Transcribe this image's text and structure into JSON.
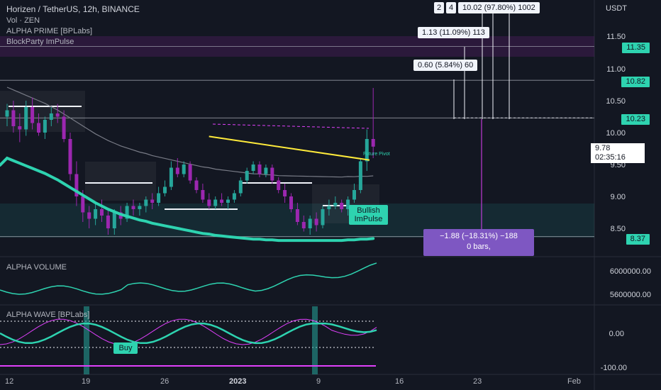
{
  "header": {
    "title": "Horizen / TetherUS, 12h, BINANCE",
    "indicators": [
      "Vol · ZEN",
      "ALPHA PRIME [BPLabs]",
      "BlockParty ImPulse"
    ]
  },
  "price_axis": {
    "currency": "USDT",
    "ticks": [
      "11.50",
      "11.00",
      "10.50",
      "10.00",
      "9.50",
      "9.00",
      "8.50"
    ],
    "tag_values": [
      "11.35",
      "10.82",
      "10.23",
      "8.37"
    ],
    "last_price": "9.78",
    "countdown": "02:35:16"
  },
  "time_axis": [
    "12",
    "19",
    "26",
    "2023",
    "9",
    "16",
    "23",
    "Feb"
  ],
  "measure_boxes": [
    "2",
    "4",
    "10.02 (97.80%) 1002",
    "1.13 (11.09%) 113",
    "0.60 (5.84%) 60",
    "−1.88 (−18.31%) −188",
    "0 bars,"
  ],
  "annotations": {
    "bullish": "Bullish ImPulse",
    "buy": "Buy",
    "future": "Future Pivot"
  },
  "panes": {
    "volume": {
      "title": "ALPHA VOLUME",
      "ticks": [
        "6000000.00",
        "5600000.00"
      ]
    },
    "wave": {
      "title": "ALPHA WAVE [BPLabs]",
      "ticks": [
        "0.00",
        "-100.00"
      ]
    }
  },
  "colors": {
    "bg": "#131722",
    "up": "#26a69a",
    "down": "#9c27b0",
    "sma": "#2ed3b0",
    "trend": "#ffeb3b",
    "wave": "#e040fb",
    "tag": "#8c87cc"
  },
  "chart_data": {
    "type": "candlestick",
    "x_label": "12h bars",
    "ylim": [
      8.2,
      11.7
    ],
    "candles": [
      [
        10.25,
        10.45,
        10.1,
        10.35
      ],
      [
        10.35,
        10.5,
        10.0,
        10.1
      ],
      [
        10.1,
        10.3,
        9.85,
        10.05
      ],
      [
        10.05,
        10.5,
        9.95,
        10.4
      ],
      [
        10.4,
        10.55,
        10.05,
        10.15
      ],
      [
        10.15,
        10.3,
        9.95,
        10.0
      ],
      [
        10.0,
        10.25,
        9.9,
        10.2
      ],
      [
        10.2,
        10.4,
        10.1,
        10.3
      ],
      [
        10.3,
        10.45,
        10.15,
        10.25
      ],
      [
        10.25,
        10.35,
        9.85,
        9.9
      ],
      [
        9.9,
        10.0,
        9.25,
        9.35
      ],
      [
        9.35,
        9.55,
        8.85,
        9.0
      ],
      [
        9.0,
        9.1,
        8.6,
        8.75
      ],
      [
        8.75,
        8.85,
        8.5,
        8.65
      ],
      [
        8.65,
        8.9,
        8.55,
        8.8
      ],
      [
        8.8,
        8.95,
        8.6,
        8.7
      ],
      [
        8.7,
        8.8,
        8.4,
        8.5
      ],
      [
        8.5,
        8.8,
        8.4,
        8.75
      ],
      [
        8.75,
        8.85,
        8.55,
        8.65
      ],
      [
        8.65,
        8.9,
        8.6,
        8.85
      ],
      [
        8.85,
        8.95,
        8.7,
        8.8
      ],
      [
        8.8,
        8.9,
        8.7,
        8.85
      ],
      [
        8.85,
        9.0,
        8.75,
        8.95
      ],
      [
        8.95,
        9.05,
        8.8,
        8.9
      ],
      [
        8.9,
        9.15,
        8.85,
        9.05
      ],
      [
        9.05,
        9.25,
        9.0,
        9.15
      ],
      [
        9.15,
        9.55,
        9.1,
        9.45
      ],
      [
        9.45,
        9.6,
        9.3,
        9.35
      ],
      [
        9.35,
        9.55,
        9.3,
        9.5
      ],
      [
        9.5,
        9.55,
        9.2,
        9.25
      ],
      [
        9.25,
        9.3,
        9.05,
        9.1
      ],
      [
        9.1,
        9.2,
        8.9,
        8.95
      ],
      [
        8.95,
        9.05,
        8.8,
        8.85
      ],
      [
        8.85,
        9.0,
        8.8,
        8.95
      ],
      [
        8.95,
        9.05,
        8.85,
        8.9
      ],
      [
        8.9,
        9.0,
        8.8,
        8.95
      ],
      [
        8.95,
        9.1,
        8.9,
        9.05
      ],
      [
        9.05,
        9.3,
        9.0,
        9.25
      ],
      [
        9.25,
        9.45,
        9.2,
        9.4
      ],
      [
        9.4,
        9.55,
        9.35,
        9.5
      ],
      [
        9.5,
        9.55,
        9.3,
        9.35
      ],
      [
        9.35,
        9.5,
        9.3,
        9.45
      ],
      [
        9.45,
        9.5,
        9.2,
        9.25
      ],
      [
        9.25,
        9.3,
        9.05,
        9.1
      ],
      [
        9.1,
        9.2,
        8.9,
        9.0
      ],
      [
        9.0,
        9.05,
        8.75,
        8.8
      ],
      [
        8.8,
        8.9,
        8.55,
        8.6
      ],
      [
        8.6,
        8.7,
        8.45,
        8.5
      ],
      [
        8.5,
        8.7,
        8.4,
        8.65
      ],
      [
        8.65,
        8.75,
        8.45,
        8.55
      ],
      [
        8.55,
        8.85,
        8.5,
        8.8
      ],
      [
        8.8,
        8.95,
        8.7,
        8.85
      ],
      [
        8.85,
        9.0,
        8.8,
        8.9
      ],
      [
        8.9,
        8.95,
        8.75,
        8.8
      ],
      [
        8.8,
        9.0,
        8.7,
        8.95
      ],
      [
        8.95,
        9.2,
        8.9,
        9.1
      ],
      [
        9.1,
        9.6,
        9.05,
        9.55
      ],
      [
        9.55,
        10.05,
        9.4,
        9.9
      ],
      [
        9.9,
        10.7,
        9.6,
        9.78
      ]
    ],
    "sma_long": [
      9.6,
      9.56,
      9.52,
      9.48,
      9.44,
      9.4,
      9.36,
      9.31,
      9.26,
      9.2,
      9.14,
      9.08,
      9.02,
      8.96,
      8.9,
      8.85,
      8.8,
      8.76,
      8.72,
      8.69,
      8.66,
      8.63,
      8.61,
      8.58,
      8.56,
      8.54,
      8.52,
      8.5,
      8.48,
      8.46,
      8.44,
      8.42,
      8.41,
      8.39,
      8.38,
      8.37,
      8.36,
      8.35,
      8.34,
      8.33,
      8.33,
      8.32,
      8.32,
      8.31,
      8.31,
      8.31,
      8.31,
      8.31,
      8.31,
      8.31,
      8.31,
      8.31,
      8.31,
      8.31,
      8.32,
      8.32,
      8.33,
      8.33,
      8.34
    ],
    "trend_line": {
      "from": [
        23,
        9.94
      ],
      "to": [
        40,
        9.57
      ]
    },
    "levels": [
      11.35,
      10.82,
      10.23,
      8.37
    ]
  }
}
